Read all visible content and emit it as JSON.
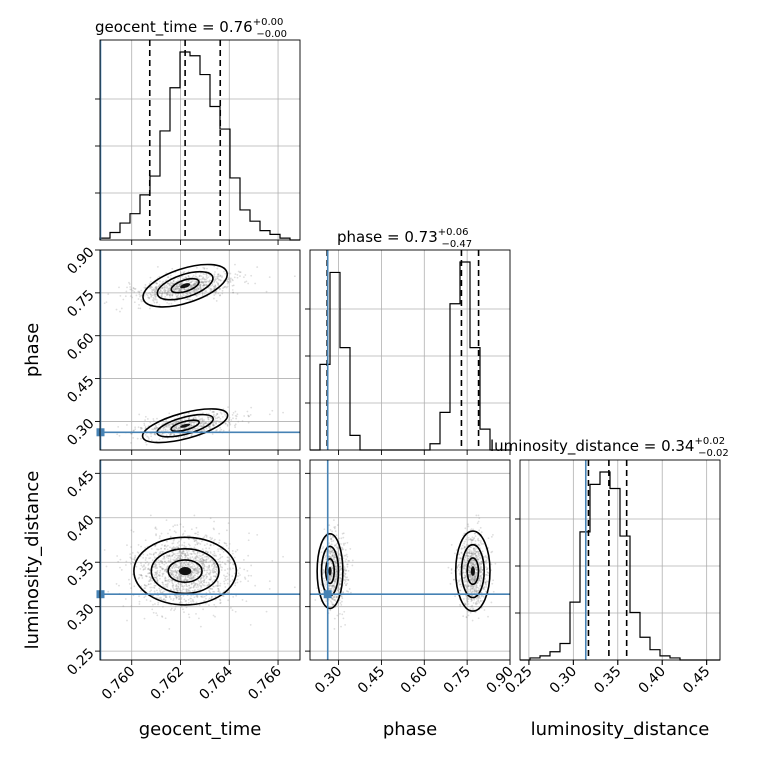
{
  "chart_data": {
    "type": "corner",
    "parameters": [
      "geocent_time",
      "phase",
      "luminosity_distance"
    ],
    "titles": [
      {
        "param": "geocent_time",
        "label": "geocent_time",
        "median": "0.76",
        "plus": "+0.00",
        "minus": "−0.00"
      },
      {
        "param": "phase",
        "label": "phase",
        "median": "0.73",
        "plus": "+0.06",
        "minus": "−0.47"
      },
      {
        "param": "luminosity_distance",
        "label": "luminosity_distance",
        "median": "0.34",
        "plus": "+0.02",
        "minus": "−0.02"
      }
    ],
    "truths": {
      "geocent_time": 0.75872,
      "phase": 0.262,
      "luminosity_distance": 0.314
    },
    "ranges": {
      "geocent_time": [
        0.7587,
        0.7669
      ],
      "phase": [
        0.2,
        0.9
      ],
      "luminosity_distance": [
        0.24,
        0.465
      ]
    },
    "ticks": {
      "geocent_time": {
        "values": [
          0.76,
          0.762,
          0.764,
          0.766
        ],
        "labels": [
          "0.760",
          "0.762",
          "0.764",
          "0.766"
        ]
      },
      "phase": {
        "values": [
          0.3,
          0.45,
          0.6,
          0.75,
          0.9
        ],
        "labels": [
          "0.30",
          "0.45",
          "0.60",
          "0.75",
          "0.90"
        ]
      },
      "luminosity_distance": {
        "values": [
          0.25,
          0.3,
          0.35,
          0.4,
          0.45
        ],
        "labels": [
          "0.25",
          "0.30",
          "0.35",
          "0.40",
          "0.45"
        ]
      }
    },
    "histograms": {
      "geocent_time": {
        "edges": [
          0.7587,
          0.75911,
          0.75952,
          0.75993,
          0.76034,
          0.76075,
          0.76116,
          0.76157,
          0.76198,
          0.76239,
          0.7628,
          0.76321,
          0.76362,
          0.76403,
          0.76444,
          0.76485,
          0.76526,
          0.76567,
          0.76608,
          0.76649,
          0.7669
        ],
        "counts": [
          1,
          4,
          9,
          14,
          24,
          34,
          58,
          81,
          100,
          98,
          88,
          71,
          59,
          33,
          16,
          10,
          5,
          3,
          1,
          0
        ],
        "quantiles": [
          0.76074,
          0.76219,
          0.76363
        ]
      },
      "phase": {
        "edges": [
          0.2,
          0.235,
          0.27,
          0.305,
          0.34,
          0.375,
          0.41,
          0.445,
          0.48,
          0.515,
          0.55,
          0.585,
          0.62,
          0.655,
          0.69,
          0.725,
          0.76,
          0.795,
          0.83,
          0.865,
          0.9
        ],
        "counts": [
          0,
          41,
          85,
          49,
          7,
          0,
          0,
          0,
          0,
          0,
          0,
          0,
          3,
          18,
          70,
          90,
          49,
          10,
          0,
          0
        ],
        "quantiles": [
          0.26,
          0.73,
          0.79
        ]
      },
      "luminosity_distance": {
        "edges": [
          0.24,
          0.25125,
          0.2625,
          0.27375,
          0.285,
          0.29625,
          0.3075,
          0.31875,
          0.33,
          0.34125,
          0.3525,
          0.36375,
          0.375,
          0.38625,
          0.3975,
          0.40875,
          0.42,
          0.43125,
          0.4425,
          0.45375,
          0.465
        ],
        "counts": [
          0,
          1,
          2,
          4,
          8,
          28,
          62,
          85,
          91,
          83,
          60,
          23,
          11,
          5,
          2,
          1,
          0,
          0,
          0,
          0
        ],
        "quantiles": [
          0.317,
          0.34,
          0.36
        ]
      }
    },
    "contour_levels": 3,
    "grid": true
  }
}
